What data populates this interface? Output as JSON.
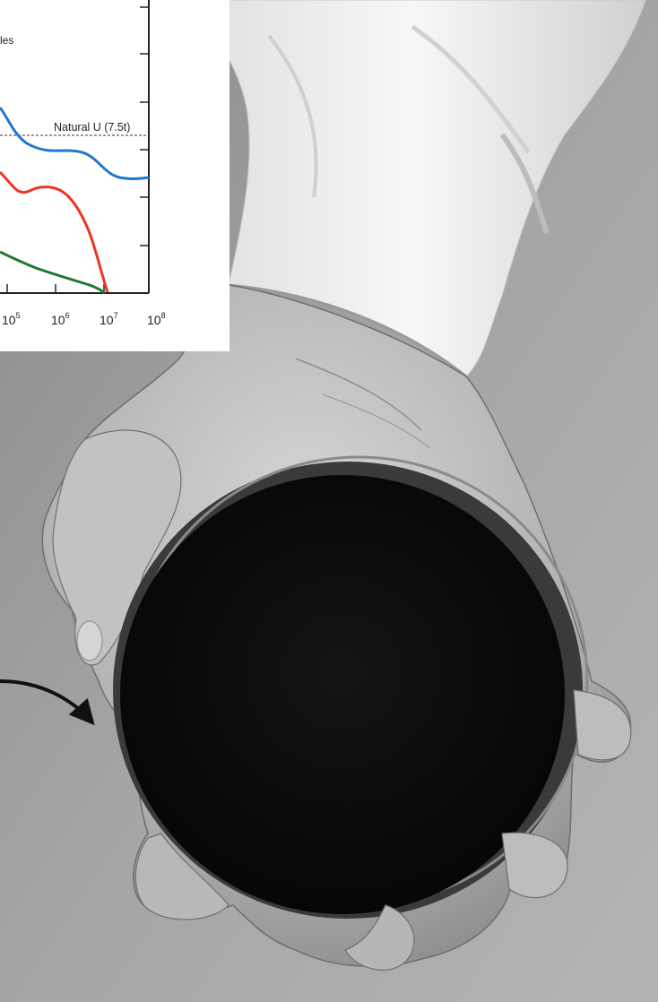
{
  "chart_data": {
    "type": "line",
    "x_scale": "log",
    "x_tick_labels": [
      "10^5",
      "10^6",
      "10^7",
      "10^8"
    ],
    "x_ticks": [
      {
        "base": "10",
        "exp": "5"
      },
      {
        "base": "10",
        "exp": "6"
      },
      {
        "base": "10",
        "exp": "7"
      },
      {
        "base": "10",
        "exp": "8"
      }
    ],
    "annotations": {
      "legend_fragment": "les",
      "reference_line_label": "Natural U (7.5t)"
    },
    "series": [
      {
        "color": "#2277cc"
      },
      {
        "color": "#ee3322"
      },
      {
        "color": "#227733"
      }
    ],
    "reference_line": {
      "style": "dashed",
      "color": "#333333"
    },
    "grid": false
  },
  "colors": {
    "background_gray": "#a9a9a9",
    "sleeve": "#f2f2f2",
    "skin": "#bcbcbc",
    "disc": "#111111",
    "arrow": "#111111"
  }
}
